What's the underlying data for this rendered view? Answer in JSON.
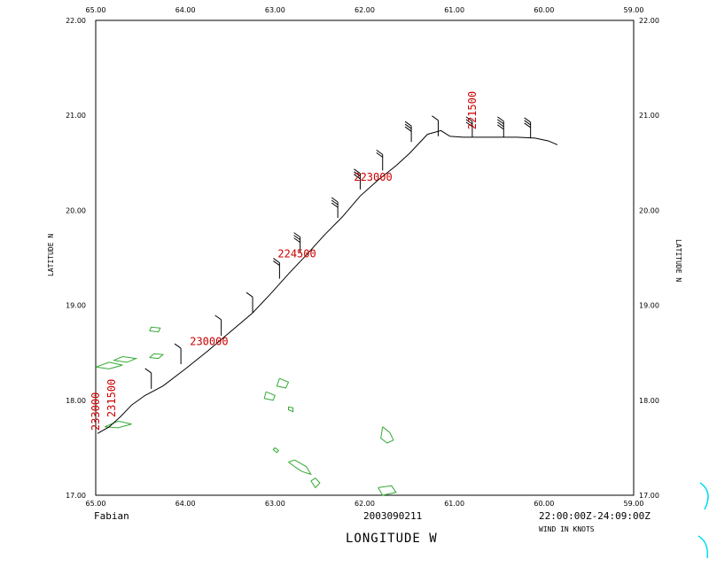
{
  "chart_data": {
    "type": "line",
    "title": "",
    "footer": {
      "storm": "Fabian",
      "date": "2003090211",
      "time_range": "22:00:00Z-24:09:00Z",
      "wind_note": "WIND IN KNOTS"
    },
    "xlabel": "LONGITUDE  W",
    "ylabel_left": "LATITUDE  N",
    "ylabel_right": "LATITUDE  N",
    "xlim": [
      65.0,
      59.0
    ],
    "ylim": [
      17.0,
      22.0
    ],
    "x_ticks": [
      "65.00",
      "64.00",
      "63.00",
      "62.00",
      "61.00",
      "60.00",
      "59.00"
    ],
    "y_ticks": [
      "17.00",
      "18.00",
      "19.00",
      "20.00",
      "21.00",
      "22.00"
    ],
    "track_color": "#000000",
    "annotation_color": "#cc0000",
    "coast_color": "#33aa33",
    "track": {
      "x": [
        64.98,
        64.85,
        64.72,
        64.6,
        64.45,
        64.25,
        64.0,
        63.75,
        63.5,
        63.25,
        63.05,
        62.85,
        62.65,
        62.45,
        62.25,
        62.05,
        61.85,
        61.65,
        61.5,
        61.4,
        61.3,
        61.15,
        61.05,
        60.9,
        60.7,
        60.5,
        60.3,
        60.1,
        59.95,
        59.85
      ],
      "y": [
        17.65,
        17.72,
        17.83,
        17.95,
        18.05,
        18.15,
        18.33,
        18.52,
        18.72,
        18.92,
        19.12,
        19.33,
        19.53,
        19.74,
        19.93,
        20.15,
        20.32,
        20.47,
        20.6,
        20.7,
        20.8,
        20.84,
        20.78,
        20.77,
        20.77,
        20.77,
        20.77,
        20.76,
        20.73,
        20.69
      ]
    },
    "time_labels": [
      {
        "text": "231500",
        "x": 64.82,
        "y": 17.82,
        "vertical": true
      },
      {
        "text": "233000",
        "x": 65.0,
        "y": 17.68,
        "vertical": true
      },
      {
        "text": "230000",
        "x": 63.95,
        "y": 18.62,
        "vertical": false
      },
      {
        "text": "224500",
        "x": 62.97,
        "y": 19.54,
        "vertical": false
      },
      {
        "text": "223000",
        "x": 62.12,
        "y": 20.35,
        "vertical": false
      },
      {
        "text": "221500",
        "x": 60.8,
        "y": 20.85,
        "vertical": true
      }
    ],
    "wind_barbs": [
      {
        "x": 64.38,
        "y": 18.12,
        "barbs": 1
      },
      {
        "x": 64.05,
        "y": 18.38,
        "barbs": 1
      },
      {
        "x": 63.6,
        "y": 18.68,
        "barbs": 1
      },
      {
        "x": 63.25,
        "y": 18.92,
        "barbs": 1
      },
      {
        "x": 62.95,
        "y": 19.28,
        "barbs": 2
      },
      {
        "x": 62.72,
        "y": 19.55,
        "barbs": 3
      },
      {
        "x": 62.3,
        "y": 19.92,
        "barbs": 3
      },
      {
        "x": 62.05,
        "y": 20.22,
        "barbs": 3
      },
      {
        "x": 61.8,
        "y": 20.42,
        "barbs": 2
      },
      {
        "x": 61.48,
        "y": 20.72,
        "barbs": 3
      },
      {
        "x": 61.18,
        "y": 20.78,
        "barbs": 1
      },
      {
        "x": 60.8,
        "y": 20.77,
        "barbs": 3
      },
      {
        "x": 60.45,
        "y": 20.77,
        "barbs": 4
      },
      {
        "x": 60.15,
        "y": 20.76,
        "barbs": 3
      }
    ],
    "islands": [
      [
        [
          64.9,
          17.72
        ],
        [
          64.75,
          17.78
        ],
        [
          64.6,
          17.75
        ],
        [
          64.75,
          17.71
        ],
        [
          64.9,
          17.72
        ]
      ],
      [
        [
          65.0,
          18.35
        ],
        [
          64.85,
          18.33
        ],
        [
          64.7,
          18.37
        ],
        [
          64.85,
          18.4
        ],
        [
          65.0,
          18.35
        ]
      ],
      [
        [
          64.8,
          18.42
        ],
        [
          64.65,
          18.4
        ],
        [
          64.55,
          18.44
        ],
        [
          64.7,
          18.46
        ],
        [
          64.8,
          18.42
        ]
      ],
      [
        [
          64.4,
          18.45
        ],
        [
          64.3,
          18.44
        ],
        [
          64.25,
          18.48
        ],
        [
          64.35,
          18.49
        ],
        [
          64.4,
          18.45
        ]
      ],
      [
        [
          64.4,
          18.73
        ],
        [
          64.3,
          18.72
        ],
        [
          64.28,
          18.76
        ],
        [
          64.38,
          18.77
        ],
        [
          64.4,
          18.73
        ]
      ],
      [
        [
          62.95,
          18.23
        ],
        [
          62.85,
          18.19
        ],
        [
          62.88,
          18.13
        ],
        [
          62.98,
          18.15
        ],
        [
          62.95,
          18.23
        ]
      ],
      [
        [
          63.1,
          18.09
        ],
        [
          63.0,
          18.05
        ],
        [
          63.02,
          18.0
        ],
        [
          63.12,
          18.02
        ],
        [
          63.1,
          18.09
        ]
      ],
      [
        [
          62.85,
          17.93
        ],
        [
          62.8,
          17.92
        ],
        [
          62.8,
          17.88
        ],
        [
          62.85,
          17.9
        ],
        [
          62.85,
          17.93
        ]
      ],
      [
        [
          62.85,
          17.35
        ],
        [
          62.78,
          17.3
        ],
        [
          62.7,
          17.25
        ],
        [
          62.6,
          17.22
        ],
        [
          62.65,
          17.3
        ],
        [
          62.78,
          17.37
        ],
        [
          62.85,
          17.35
        ]
      ],
      [
        [
          62.6,
          17.15
        ],
        [
          62.55,
          17.08
        ],
        [
          62.5,
          17.13
        ],
        [
          62.55,
          17.18
        ],
        [
          62.6,
          17.15
        ]
      ],
      [
        [
          61.8,
          17.72
        ],
        [
          61.72,
          17.66
        ],
        [
          61.68,
          17.58
        ],
        [
          61.75,
          17.55
        ],
        [
          61.82,
          17.6
        ],
        [
          61.8,
          17.72
        ]
      ],
      [
        [
          61.85,
          17.08
        ],
        [
          61.7,
          17.1
        ],
        [
          61.65,
          17.03
        ],
        [
          61.8,
          17.0
        ],
        [
          61.85,
          17.08
        ]
      ],
      [
        [
          63.0,
          17.5
        ],
        [
          62.96,
          17.47
        ],
        [
          62.98,
          17.45
        ],
        [
          63.02,
          17.48
        ],
        [
          63.0,
          17.5
        ]
      ]
    ]
  }
}
